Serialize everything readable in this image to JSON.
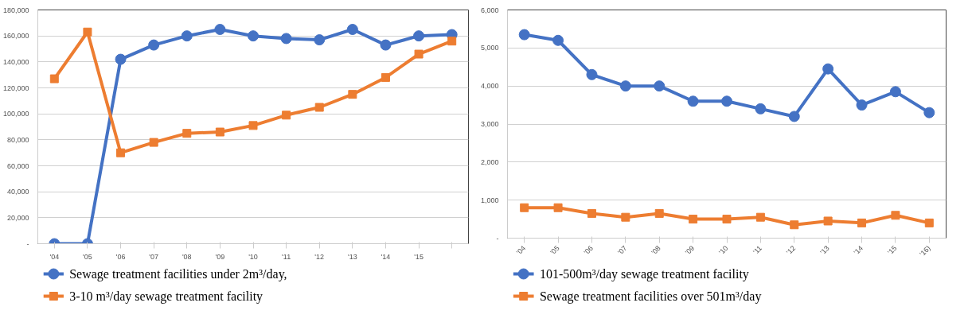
{
  "chart_data": [
    {
      "type": "line",
      "categories": [
        "'04",
        "'05",
        "'06",
        "'07",
        "'08",
        "'09",
        "'10",
        "'11",
        "'12",
        "'13",
        "'14",
        "'15",
        null
      ],
      "ylim": [
        0,
        180000
      ],
      "yticks": [
        {
          "value": 0,
          "label": "-"
        },
        {
          "value": 20000,
          "label": "20,000"
        },
        {
          "value": 40000,
          "label": "40,000"
        },
        {
          "value": 60000,
          "label": "60,000"
        },
        {
          "value": 80000,
          "label": "80,000"
        },
        {
          "value": 100000,
          "label": "100,000"
        },
        {
          "value": 120000,
          "label": "120,000"
        },
        {
          "value": 140000,
          "label": "140,000"
        },
        {
          "value": 160000,
          "label": "160,000"
        },
        {
          "value": 180000,
          "label": "180,000"
        }
      ],
      "grid": "y",
      "legend": "bottom",
      "series": [
        {
          "name": "Sewage treatment facilities under 2m³/day,",
          "color": "#4472c4",
          "marker": "circle",
          "values": [
            0,
            0,
            142000,
            153000,
            160000,
            165000,
            160000,
            158000,
            157000,
            165000,
            153000,
            160000,
            161000
          ]
        },
        {
          "name": "3-10 m³/day sewage treatment facility",
          "color": "#ed7d31",
          "marker": "square",
          "values": [
            127000,
            163000,
            70000,
            78000,
            85000,
            86000,
            91000,
            99000,
            105000,
            115000,
            128000,
            146000,
            156000
          ]
        }
      ]
    },
    {
      "type": "line",
      "categories": [
        "'04",
        "'05",
        "'06",
        "'07",
        "'08",
        "'09",
        "'10",
        "'11",
        "'12",
        "'13",
        "'14",
        "'15",
        "'16)"
      ],
      "ylim": [
        0,
        6000
      ],
      "yticks": [
        {
          "value": 0,
          "label": "-"
        },
        {
          "value": 1000,
          "label": "1,000"
        },
        {
          "value": 2000,
          "label": "2,000"
        },
        {
          "value": 3000,
          "label": "3,000"
        },
        {
          "value": 4000,
          "label": "4,000"
        },
        {
          "value": 5000,
          "label": "5,000"
        },
        {
          "value": 6000,
          "label": "6,000"
        }
      ],
      "grid": "y",
      "legend": "bottom",
      "series": [
        {
          "name": "101-500m³/day sewage treatment facility",
          "color": "#4472c4",
          "marker": "circle",
          "values": [
            5350,
            5200,
            4300,
            4000,
            4000,
            3600,
            3600,
            3400,
            3200,
            4450,
            3500,
            3850,
            3300
          ]
        },
        {
          "name": "Sewage treatment facilities over 501m³/day",
          "color": "#ed7d31",
          "marker": "square",
          "values": [
            800,
            800,
            650,
            550,
            650,
            500,
            500,
            550,
            350,
            450,
            400,
            600,
            400
          ]
        }
      ]
    }
  ]
}
